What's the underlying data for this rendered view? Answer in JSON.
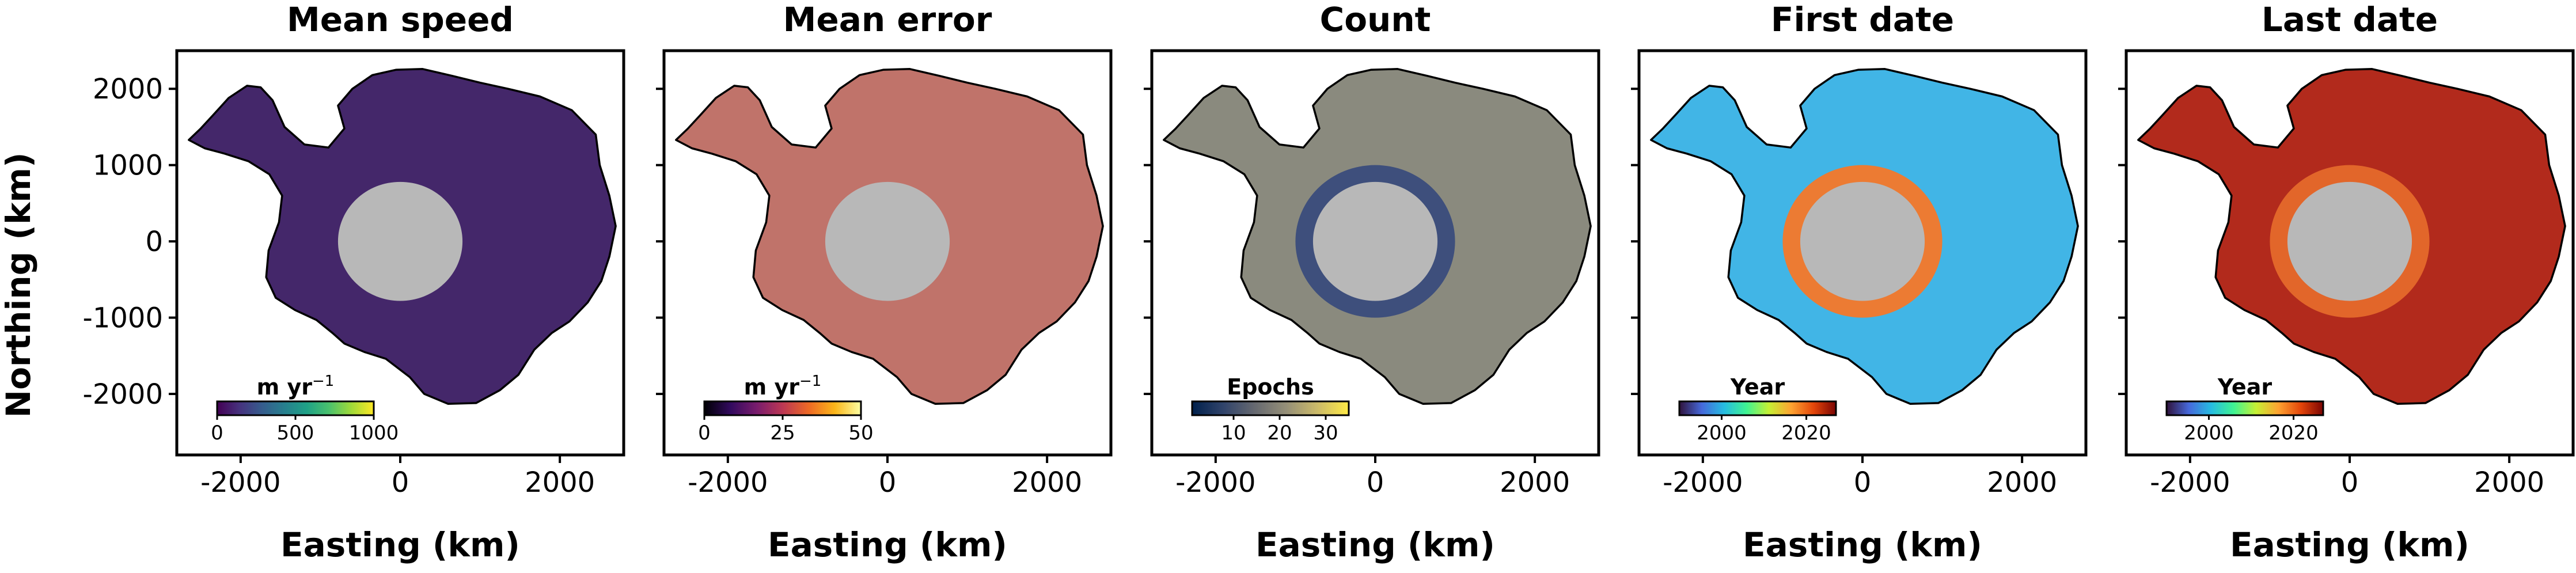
{
  "figure": {
    "ylabel": "Northing (km)",
    "xlabel": "Easting (km)"
  },
  "chart_data": [
    {
      "type": "heatmap",
      "title": "Mean speed",
      "xlabel": "Easting (km)",
      "ylabel": "Northing (km)",
      "xlim": [
        -2800,
        2800
      ],
      "ylim": [
        -2800,
        2500
      ],
      "xticks": [
        -2000,
        0,
        2000
      ],
      "yticks": [
        2000,
        1000,
        0,
        -1000,
        -2000
      ],
      "xtick_labels": [
        "-2000",
        "0",
        "2000"
      ],
      "ytick_labels": [
        "2000",
        "1000",
        "0",
        "-1000",
        "-2000"
      ],
      "colorbar": {
        "label": "m yr",
        "label_sup": "−1",
        "colormap": "viridis",
        "range": [
          0,
          1000
        ],
        "ticks": [
          0,
          500,
          1000
        ],
        "tick_labels": [
          "0",
          "500",
          "1000"
        ],
        "location": "lower-left"
      },
      "dominant_color": "#44276a",
      "mask_color": "#b8b8b8",
      "mask_ring_color": null
    },
    {
      "type": "heatmap",
      "title": "Mean error",
      "xlabel": "Easting (km)",
      "xlim": [
        -2800,
        2800
      ],
      "ylim": [
        -2800,
        2500
      ],
      "xticks": [
        -2000,
        0,
        2000
      ],
      "yticks": [
        2000,
        1000,
        0,
        -1000,
        -2000
      ],
      "xtick_labels": [
        "-2000",
        "0",
        "2000"
      ],
      "colorbar": {
        "label": "m yr",
        "label_sup": "−1",
        "colormap": "inferno",
        "range": [
          0,
          50
        ],
        "ticks": [
          0,
          25,
          50
        ],
        "tick_labels": [
          "0",
          "25",
          "50"
        ],
        "location": "lower-left"
      },
      "dominant_color": "#c0736a",
      "mask_color": "#b8b8b8",
      "mask_ring_color": null
    },
    {
      "type": "heatmap",
      "title": "Count",
      "xlabel": "Easting (km)",
      "xlim": [
        -2800,
        2800
      ],
      "ylim": [
        -2800,
        2500
      ],
      "xticks": [
        -2000,
        0,
        2000
      ],
      "yticks": [
        2000,
        1000,
        0,
        -1000,
        -2000
      ],
      "xtick_labels": [
        "-2000",
        "0",
        "2000"
      ],
      "colorbar": {
        "label": "Epochs",
        "label_sup": "",
        "colormap": "cividis",
        "range": [
          1,
          35
        ],
        "ticks": [
          10,
          20,
          30
        ],
        "tick_labels": [
          "10",
          "20",
          "30"
        ],
        "location": "lower-left"
      },
      "dominant_color": "#8a8a7e",
      "mask_color": "#b8b8b8",
      "mask_ring_color": "#3e4f7c"
    },
    {
      "type": "heatmap",
      "title": "First date",
      "xlabel": "Easting (km)",
      "xlim": [
        -2800,
        2800
      ],
      "ylim": [
        -2800,
        2500
      ],
      "xticks": [
        -2000,
        0,
        2000
      ],
      "yticks": [
        2000,
        1000,
        0,
        -1000,
        -2000
      ],
      "xtick_labels": [
        "-2000",
        "0",
        "2000"
      ],
      "colorbar": {
        "label": "Year",
        "label_sup": "",
        "colormap": "turbo",
        "range": [
          1990,
          2027
        ],
        "ticks": [
          2000,
          2020
        ],
        "tick_labels": [
          "2000",
          "2020"
        ],
        "location": "lower-left"
      },
      "dominant_color": "#41b5e6",
      "mask_color": "#b8b8b8",
      "mask_ring_color": "#ec7b33"
    },
    {
      "type": "heatmap",
      "title": "Last date",
      "xlabel": "Easting (km)",
      "xlim": [
        -2800,
        2800
      ],
      "ylim": [
        -2800,
        2500
      ],
      "xticks": [
        -2000,
        0,
        2000
      ],
      "yticks": [
        2000,
        1000,
        0,
        -1000,
        -2000
      ],
      "xtick_labels": [
        "-2000",
        "0",
        "2000"
      ],
      "colorbar": {
        "label": "Year",
        "label_sup": "",
        "colormap": "turbo",
        "range": [
          1990,
          2027
        ],
        "ticks": [
          2000,
          2020
        ],
        "tick_labels": [
          "2000",
          "2020"
        ],
        "location": "lower-left"
      },
      "dominant_color": "#b22a1c",
      "mask_color": "#b8b8b8",
      "mask_ring_color": "#e2662a"
    }
  ]
}
